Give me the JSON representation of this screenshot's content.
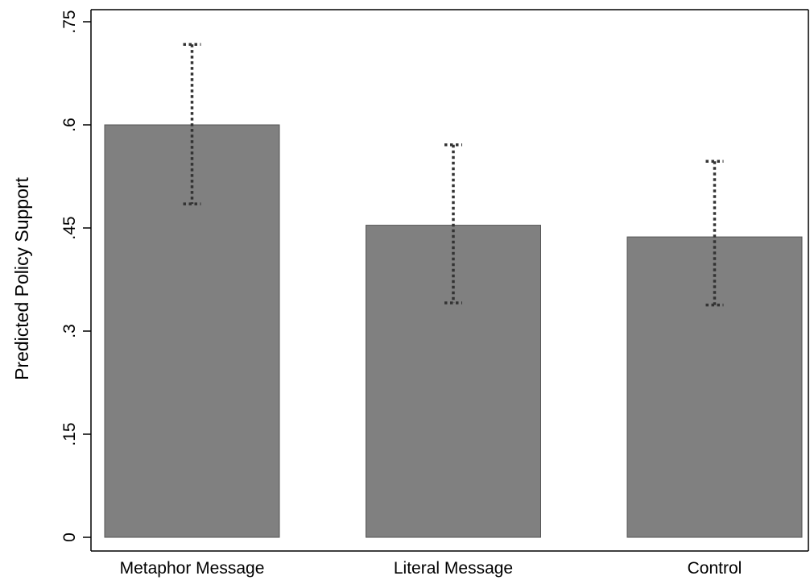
{
  "chart_data": {
    "type": "bar",
    "title": "",
    "xlabel": "",
    "ylabel": "Predicted Policy Support",
    "categories": [
      "Metaphor Message",
      "Literal Message",
      "Control"
    ],
    "values": [
      0.6,
      0.454,
      0.437
    ],
    "error_bars": {
      "lower": [
        0.485,
        0.341,
        0.338
      ],
      "upper": [
        0.717,
        0.571,
        0.547
      ],
      "style": "dotted"
    },
    "ylim": [
      0,
      0.77
    ],
    "yticks": [
      0,
      0.15,
      0.3,
      0.45,
      0.6,
      0.75
    ],
    "ytick_labels": [
      "0",
      ".15",
      ".3",
      ".45",
      ".6",
      ".75"
    ],
    "grid": false,
    "legend": "none",
    "colors": {
      "bar": "#808080",
      "bar_edge": "#555555",
      "error_bar": "#333333",
      "axis": "#000000"
    }
  }
}
